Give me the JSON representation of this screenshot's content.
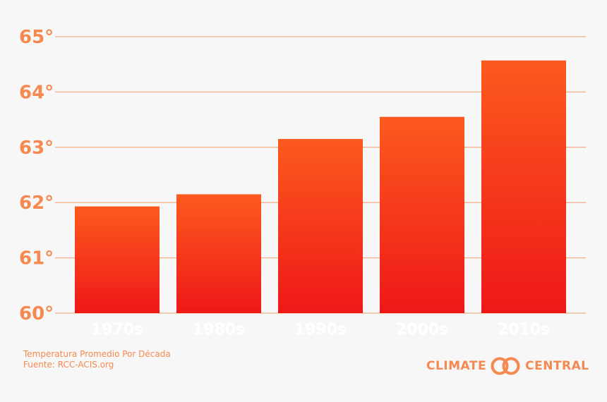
{
  "colors": {
    "accent": "#f5894f",
    "grid": "#f4b898",
    "bar_top": "#fc5a1e",
    "bar_bottom": "#ee1818",
    "xtick": "#ffffff",
    "background": "#f7f7f7"
  },
  "chart_data": {
    "type": "bar",
    "categories": [
      "1970s",
      "1980s",
      "1990s",
      "2000s",
      "2010s"
    ],
    "values": [
      61.93,
      62.15,
      63.15,
      63.55,
      64.57
    ],
    "ylim": [
      60,
      65
    ],
    "yticks": [
      60,
      61,
      62,
      63,
      64,
      65
    ],
    "ytick_labels": [
      "60°",
      "61°",
      "62°",
      "63°",
      "64°",
      "65°"
    ],
    "grid": true,
    "title": "",
    "xlabel": "",
    "ylabel": ""
  },
  "caption": {
    "line1": "Temperatura Promedio Por Década",
    "line2": "Fuente: RCC-ACIS.org"
  },
  "brand": {
    "left": "CLIMATE",
    "right": "CENTRAL",
    "logo_icon": "linked-circles-icon"
  }
}
